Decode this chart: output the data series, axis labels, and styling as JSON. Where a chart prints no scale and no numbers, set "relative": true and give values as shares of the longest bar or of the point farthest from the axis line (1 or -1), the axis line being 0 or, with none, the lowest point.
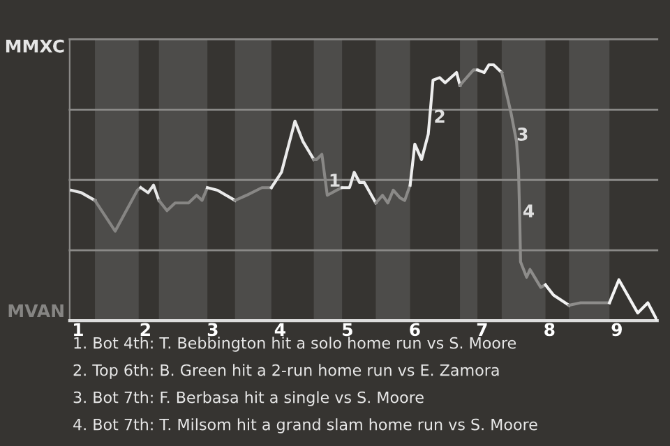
{
  "chart_data": {
    "type": "line",
    "relative": true,
    "series": [
      {
        "color": "#e6e6e6",
        "x": [
          0.9,
          1.05,
          1.25
        ],
        "values": [
          0.51,
          0.5,
          0.47
        ]
      },
      {
        "color": "#868583",
        "x": [
          1.25,
          1.55,
          1.88,
          1.93
        ],
        "values": [
          0.47,
          0.35,
          0.51,
          0.52
        ]
      },
      {
        "color": "#e8e8e8",
        "x": [
          1.93,
          2.04,
          2.12,
          2.2
        ],
        "values": [
          0.52,
          0.5,
          0.53,
          0.47
        ]
      },
      {
        "color": "#878684",
        "x": [
          2.2,
          2.32,
          2.44,
          2.64,
          2.76,
          2.84,
          2.92
        ],
        "values": [
          0.47,
          0.43,
          0.46,
          0.46,
          0.49,
          0.47,
          0.52
        ]
      },
      {
        "color": "#eaeaea",
        "x": [
          2.92,
          3.07,
          3.33
        ],
        "values": [
          0.52,
          0.51,
          0.47
        ]
      },
      {
        "color": "#888785",
        "x": [
          3.33,
          3.5,
          3.73,
          3.87
        ],
        "values": [
          0.47,
          0.49,
          0.52,
          0.52
        ]
      },
      {
        "color": "#ebebeb",
        "x": [
          3.87,
          4.02,
          4.22,
          4.34,
          4.5
        ],
        "values": [
          0.52,
          0.58,
          0.78,
          0.7,
          0.63
        ]
      },
      {
        "color": "#898886",
        "x": [
          4.5,
          4.54,
          4.62,
          4.7,
          4.84,
          4.92
        ],
        "values": [
          0.63,
          0.63,
          0.65,
          0.49,
          0.51,
          0.52
        ]
      },
      {
        "color": "#ececec",
        "x": [
          4.92,
          5.03,
          5.1,
          5.18,
          5.25,
          5.42
        ],
        "values": [
          0.52,
          0.52,
          0.58,
          0.54,
          0.54,
          0.46
        ]
      },
      {
        "color": "#8b8a88",
        "x": [
          5.42,
          5.52,
          5.6,
          5.68,
          5.78,
          5.85,
          5.93
        ],
        "values": [
          0.46,
          0.49,
          0.46,
          0.51,
          0.48,
          0.47,
          0.53
        ]
      },
      {
        "color": "#eeeeee",
        "x": [
          5.93,
          6,
          6.1,
          6.2,
          6.27,
          6.37,
          6.45,
          6.62,
          6.67
        ],
        "values": [
          0.53,
          0.69,
          0.63,
          0.73,
          0.94,
          0.95,
          0.93,
          0.97,
          0.92
        ]
      },
      {
        "color": "#8c8b89",
        "x": [
          6.67,
          6.87,
          6.93
        ],
        "values": [
          0.92,
          0.98,
          0.98
        ]
      },
      {
        "color": "#f0f0f0",
        "x": [
          6.93,
          7.03,
          7.1,
          7.17,
          7.29
        ],
        "values": [
          0.98,
          0.97,
          1,
          1,
          0.97
        ]
      },
      {
        "color": "#8d8c8a",
        "x": [
          7.29,
          7.43,
          7.51,
          7.54,
          7.56,
          7.57,
          7.66,
          7.71,
          7.87,
          7.94
        ],
        "values": [
          0.97,
          0.81,
          0.7,
          0.59,
          0.37,
          0.23,
          0.17,
          0.2,
          0.13,
          0.14
        ]
      },
      {
        "color": "#f2f2f2",
        "x": [
          7.94,
          8.06,
          8.29
        ],
        "values": [
          0.14,
          0.1,
          0.06
        ]
      },
      {
        "color": "#8e8d8b",
        "x": [
          8.29,
          8.46,
          8.89
        ],
        "values": [
          0.06,
          0.07,
          0.07
        ]
      },
      {
        "color": "#f4f4f4",
        "x": [
          8.89,
          9.03,
          9.31,
          9.46,
          9.6
        ],
        "values": [
          0.07,
          0.16,
          0.03,
          0.07,
          0
        ]
      }
    ],
    "xlim": [
      0.875,
      9.6
    ],
    "xticks": [
      1,
      2,
      3,
      4,
      5,
      6,
      7,
      8,
      9
    ],
    "legend": false,
    "grid": "y",
    "bands": [
      {
        "axis": "x",
        "from": 1.25,
        "to": 1.9,
        "color": "#4d4c4a"
      },
      {
        "axis": "x",
        "from": 2.2,
        "to": 2.92,
        "color": "#4d4c4a"
      },
      {
        "axis": "x",
        "from": 3.33,
        "to": 3.87,
        "color": "#4d4c4a"
      },
      {
        "axis": "x",
        "from": 4.5,
        "to": 4.92,
        "color": "#4d4c4a"
      },
      {
        "axis": "x",
        "from": 5.42,
        "to": 5.93,
        "color": "#4d4c4a"
      },
      {
        "axis": "x",
        "from": 6.67,
        "to": 6.93,
        "color": "#4d4c4a"
      },
      {
        "axis": "x",
        "from": 7.29,
        "to": 7.94,
        "color": "#4d4c4a"
      },
      {
        "axis": "x",
        "from": 8.29,
        "to": 8.89,
        "color": "#4d4c4a"
      }
    ],
    "annotations": [
      "MMXC",
      "MVAN",
      {
        "text": "1",
        "x": 4.72,
        "y": 0.55
      },
      {
        "text": "2",
        "x": 6.28,
        "y": 0.8
      },
      {
        "text": "3",
        "x": 7.51,
        "y": 0.73
      },
      {
        "text": "4",
        "x": 7.6,
        "y": 0.43
      },
      "1. Bot 4th: T. Bebbington hit a solo home run vs S. Moore",
      "2. Top 6th: B. Green hit a 2-run home run vs E. Zamora",
      "3. Bot 7th: F. Berbasa hit a single vs S. Moore",
      "4. Bot 7th: T. Milsom hit a grand slam home run vs S. Moore"
    ]
  }
}
